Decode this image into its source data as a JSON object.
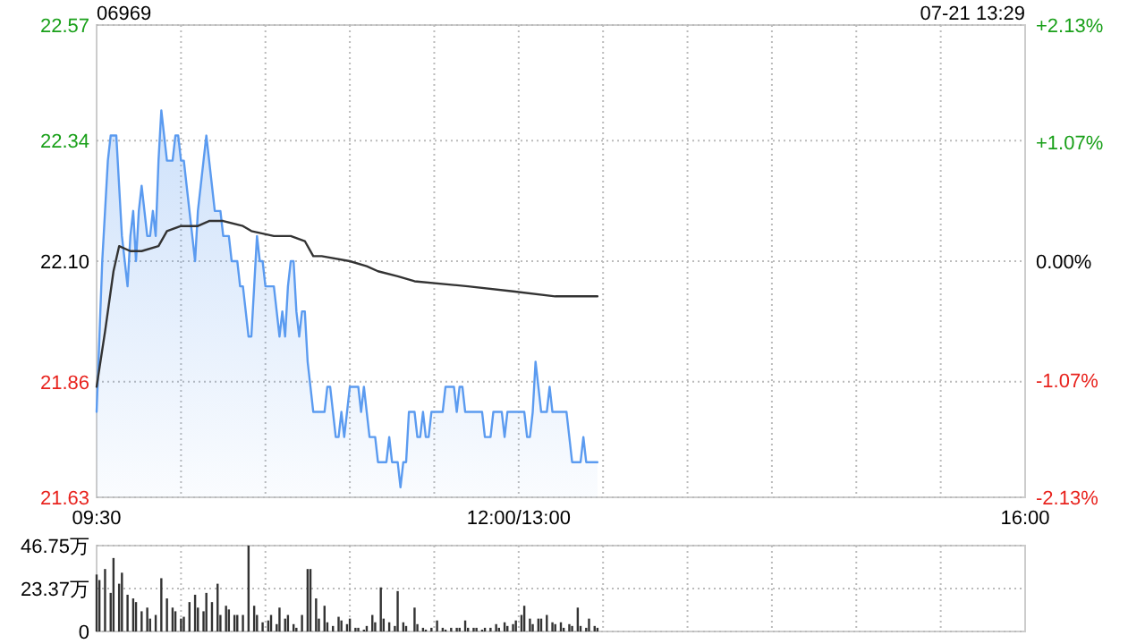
{
  "chart_data": [
    {
      "type": "line",
      "title": "06969",
      "subtitle": "07-21 13:29",
      "grid": true,
      "categories": [
        "09:30",
        null,
        null,
        null,
        null,
        null,
        null,
        null,
        null,
        null,
        null,
        null,
        null,
        null,
        null,
        null,
        null,
        null,
        null,
        null,
        null,
        null,
        null,
        null,
        null,
        null,
        null,
        null,
        null,
        null,
        null,
        null,
        null,
        null,
        null,
        null,
        null,
        null,
        null,
        null,
        null,
        null,
        null,
        null,
        null,
        null,
        null,
        null,
        null,
        null,
        null,
        null,
        null,
        null,
        null,
        null,
        null,
        null,
        null,
        null,
        null,
        null,
        null,
        null,
        null,
        null,
        null,
        null,
        null,
        null,
        null,
        null,
        null,
        null,
        null,
        null,
        null,
        null,
        null,
        null,
        null,
        null,
        null,
        null,
        null,
        null,
        null,
        null,
        null,
        null,
        null,
        null,
        null,
        null,
        null,
        null,
        null,
        null,
        null,
        null,
        null,
        null,
        null,
        null,
        null,
        null,
        null,
        null,
        null,
        null,
        null,
        null,
        null,
        null,
        null,
        null,
        null,
        null,
        null,
        null,
        null,
        null,
        null,
        null,
        null,
        null,
        null,
        null,
        null,
        null,
        null,
        null,
        null,
        null,
        null,
        null,
        null,
        null,
        null,
        null,
        null,
        null,
        null,
        null,
        null,
        null,
        null,
        null,
        null,
        null,
        "12:00/13:00",
        null,
        null,
        null,
        null,
        null,
        null,
        null,
        null,
        null,
        null,
        null,
        null,
        null,
        null,
        null,
        null,
        null,
        null,
        null,
        null,
        null,
        null,
        null,
        null,
        null,
        null,
        null,
        null,
        null,
        null,
        null,
        null,
        null,
        null,
        null,
        null,
        null,
        null,
        null,
        null,
        null,
        null,
        null,
        null,
        null,
        null,
        null,
        null,
        null,
        null,
        null,
        null,
        null,
        null,
        null,
        null,
        null,
        null,
        null,
        null,
        null,
        null,
        null,
        null,
        null,
        null,
        null,
        null,
        null,
        null,
        null,
        null,
        null,
        null,
        null,
        null,
        null,
        null,
        null,
        null,
        null,
        null,
        null,
        null,
        null,
        null,
        null,
        null,
        null,
        null,
        null,
        null,
        null,
        null,
        null,
        null,
        null,
        null,
        null,
        null,
        null,
        null,
        null,
        null,
        null,
        null,
        null,
        null,
        null,
        null,
        null,
        null,
        null,
        null,
        null,
        null,
        null,
        null,
        null,
        null,
        null,
        null,
        null,
        null,
        null,
        null,
        null,
        null,
        null,
        null,
        null,
        null,
        null,
        null,
        null,
        null,
        null,
        null,
        null,
        null,
        null,
        null,
        null,
        null,
        null,
        null,
        null,
        null,
        null,
        null,
        null,
        null,
        null,
        null,
        null,
        null,
        null,
        null,
        null,
        null,
        null,
        null,
        null,
        null,
        null,
        null,
        null,
        null,
        null,
        null,
        null,
        null,
        null,
        null,
        null,
        null,
        null,
        null,
        null,
        "16:00"
      ],
      "ylim": [
        21.63,
        22.57
      ],
      "yticks": [
        {
          "value": 21.63,
          "label": "21.63"
        },
        {
          "value": 21.86,
          "label": "21.86"
        },
        {
          "value": 22.1,
          "label": "22.10"
        },
        {
          "value": 22.34,
          "label": "22.34"
        },
        {
          "value": 22.57,
          "label": "22.57"
        }
      ],
      "y2lim": [
        -2.13,
        2.13
      ],
      "y2ticks": [
        {
          "value": -2.13,
          "label": "-2.13%"
        },
        {
          "value": -1.07,
          "label": "-1.07%"
        },
        {
          "value": 0,
          "label": "0.00%"
        },
        {
          "value": 1.07,
          "label": "+1.07%"
        },
        {
          "value": 2.13,
          "label": "+2.13%"
        }
      ],
      "series": [
        {
          "type": "area",
          "color": "#5b9bf0",
          "values": [
            21.8,
            21.95,
            22.1,
            22.2,
            22.3,
            22.35,
            22.35,
            22.35,
            22.25,
            22.15,
            22.1,
            22.05,
            22.15,
            22.2,
            22.1,
            22.2,
            22.25,
            22.2,
            22.15,
            22.15,
            22.2,
            22.15,
            22.3,
            22.4,
            22.35,
            22.3,
            22.3,
            22.3,
            22.35,
            22.35,
            22.3,
            22.3,
            22.25,
            22.2,
            22.15,
            22.1,
            22.2,
            22.25,
            22.3,
            22.35,
            22.3,
            22.25,
            22.2,
            22.2,
            22.2,
            22.15,
            22.15,
            22.15,
            22.1,
            22.1,
            22.1,
            22.05,
            22.05,
            22.0,
            21.95,
            21.95,
            22.05,
            22.15,
            22.1,
            22.1,
            22.05,
            22.05,
            22.05,
            22.05,
            22.0,
            21.95,
            22.0,
            21.95,
            22.05,
            22.1,
            22.1,
            22.0,
            21.95,
            22.0,
            22.0,
            21.9,
            21.85,
            21.8,
            21.8,
            21.8,
            21.8,
            21.8,
            21.85,
            21.85,
            21.8,
            21.75,
            21.75,
            21.8,
            21.75,
            21.8,
            21.85,
            21.85,
            21.85,
            21.85,
            21.8,
            21.85,
            21.8,
            21.75,
            21.75,
            21.75,
            21.7,
            21.7,
            21.7,
            21.7,
            21.75,
            21.7,
            21.7,
            21.7,
            21.65,
            21.7,
            21.7,
            21.8,
            21.8,
            21.8,
            21.75,
            21.75,
            21.8,
            21.75,
            21.75,
            21.8,
            21.8,
            21.8,
            21.8,
            21.8,
            21.85,
            21.85,
            21.85,
            21.85,
            21.8,
            21.85,
            21.85,
            21.8,
            21.8,
            21.8,
            21.8,
            21.8,
            21.8,
            21.8,
            21.75,
            21.75,
            21.75,
            21.8,
            21.8,
            21.8,
            21.8,
            21.75,
            21.8,
            21.8,
            21.8,
            21.8,
            21.8,
            21.8,
            21.8,
            21.75,
            21.75,
            21.8,
            21.9,
            21.85,
            21.8,
            21.8,
            21.8,
            21.85,
            21.8,
            21.8,
            21.8,
            21.8,
            21.8,
            21.8,
            21.75,
            21.7,
            21.7,
            21.7,
            21.7,
            21.75,
            21.7,
            21.7,
            21.7,
            21.7,
            21.7,
            null,
            null,
            null,
            null,
            null,
            null,
            null,
            null,
            null,
            null,
            null,
            null,
            null,
            null,
            null,
            null,
            null,
            null,
            null,
            null,
            null,
            null,
            null,
            null,
            null,
            null,
            null,
            null,
            null,
            null,
            null,
            null,
            null,
            null,
            null,
            null,
            null,
            null,
            null,
            null,
            null,
            null,
            null,
            null,
            null,
            null,
            null,
            null,
            null,
            null,
            null,
            null,
            null,
            null,
            null,
            null,
            null,
            null,
            null,
            null,
            null,
            null,
            null,
            null,
            null,
            null,
            null,
            null,
            null,
            null,
            null,
            null,
            null,
            null,
            null,
            null,
            null,
            null,
            null,
            null,
            null,
            null,
            null,
            null,
            null,
            null,
            null,
            null,
            null,
            null,
            null,
            null,
            null,
            null,
            null,
            null,
            null,
            null,
            null,
            null,
            null,
            null,
            null,
            null,
            null,
            null,
            null,
            null,
            null,
            null,
            null,
            null,
            null,
            null,
            null,
            null,
            null,
            null,
            null,
            null,
            null,
            null,
            null,
            null,
            null,
            null,
            null,
            null,
            null,
            null,
            null,
            null,
            null,
            null,
            null,
            null,
            null,
            null,
            null,
            null,
            null,
            null,
            null,
            null,
            null,
            null,
            null,
            null,
            null,
            null,
            null,
            null
          ]
        },
        {
          "color": "#333333",
          "values": [
            21.85,
            null,
            null,
            21.96,
            null,
            null,
            22.08,
            null,
            22.13,
            null,
            null,
            null,
            22.12,
            null,
            null,
            null,
            22.12,
            null,
            null,
            null,
            null,
            null,
            22.13,
            null,
            null,
            22.16,
            null,
            null,
            null,
            null,
            22.17,
            null,
            null,
            null,
            null,
            null,
            22.17,
            null,
            null,
            null,
            22.18,
            null,
            null,
            null,
            null,
            22.18,
            null,
            null,
            null,
            null,
            null,
            null,
            22.17,
            null,
            null,
            22.16,
            null,
            null,
            null,
            null,
            null,
            null,
            null,
            22.15,
            null,
            null,
            null,
            null,
            null,
            22.15,
            null,
            null,
            null,
            null,
            22.14,
            null,
            null,
            22.11,
            null,
            null,
            22.11,
            null,
            null,
            null,
            null,
            null,
            null,
            null,
            null,
            null,
            22.1,
            null,
            null,
            null,
            null,
            null,
            22.09,
            null,
            null,
            null,
            22.08,
            null,
            null,
            null,
            null,
            null,
            null,
            22.07,
            null,
            null,
            null,
            null,
            null,
            22.06,
            null,
            null,
            null,
            null,
            null,
            null,
            null,
            null,
            null,
            null,
            null,
            null,
            null,
            null,
            null,
            null,
            null,
            null,
            22.05,
            null,
            null,
            null,
            null,
            null,
            null,
            null,
            null,
            null,
            null,
            null,
            null,
            null,
            null,
            null,
            22.04,
            null,
            null,
            null,
            null,
            null,
            null,
            null,
            null,
            null,
            null,
            null,
            null,
            null,
            null,
            22.03,
            null,
            null,
            null,
            null,
            null,
            null,
            null,
            null,
            null,
            null,
            null,
            null,
            null,
            null,
            22.03,
            null,
            null,
            null,
            null,
            null,
            null,
            null,
            null,
            null,
            null,
            null,
            null,
            null,
            null,
            null,
            null,
            null,
            null,
            null,
            null,
            null,
            null,
            null,
            null,
            null,
            null,
            null,
            null,
            null,
            null,
            null,
            null,
            null,
            null,
            null,
            null,
            null,
            null,
            null,
            null,
            null,
            null,
            null,
            null,
            null,
            null,
            null,
            null,
            null,
            null,
            null,
            null,
            null,
            null,
            null,
            null,
            null,
            null,
            null,
            null,
            null,
            null,
            null,
            null,
            null,
            null,
            null,
            null,
            null,
            null,
            null,
            null,
            null,
            null,
            null,
            null,
            null,
            null,
            null,
            null,
            null,
            null,
            null,
            null,
            null,
            null,
            null,
            null,
            null,
            null,
            null,
            null,
            null,
            null,
            null,
            null,
            null,
            null,
            null,
            null,
            null,
            null,
            null,
            null,
            null,
            null,
            null,
            null,
            null,
            null,
            null,
            null,
            null,
            null,
            null,
            null,
            null,
            null,
            null,
            null,
            null,
            null,
            null,
            null,
            null,
            null,
            null,
            null,
            null,
            null,
            null,
            null,
            null,
            null,
            null,
            null,
            null,
            null,
            null,
            null,
            null,
            null,
            null,
            null,
            null,
            null,
            null,
            null,
            null,
            null,
            null,
            null
          ]
        }
      ]
    },
    {
      "type": "bar",
      "grid": true,
      "tick_labels": "y",
      "categories": [
        null,
        null,
        null,
        null,
        null,
        null,
        null,
        null,
        null,
        null,
        null,
        null,
        null,
        null,
        null,
        null,
        null,
        null,
        null,
        null,
        null,
        null,
        null,
        null,
        null,
        null,
        null,
        null,
        null,
        null,
        null,
        null,
        null,
        null,
        null,
        null,
        null,
        null,
        null,
        null,
        null,
        null,
        null,
        null,
        null,
        null,
        null,
        null,
        null,
        null,
        null,
        null,
        null,
        null,
        null,
        null,
        null,
        null,
        null,
        null,
        null,
        null,
        null,
        null,
        null,
        null,
        null,
        null,
        null,
        null,
        null,
        null,
        null,
        null,
        null,
        null,
        null,
        null,
        null,
        null,
        null,
        null,
        null,
        null,
        null,
        null,
        null,
        null,
        null,
        null,
        null,
        null,
        null,
        null,
        null,
        null,
        null,
        null,
        null,
        null,
        null,
        null,
        null,
        null,
        null,
        null,
        null,
        null,
        null,
        null,
        null,
        null,
        null,
        null,
        null,
        null,
        null,
        null,
        null,
        null,
        null,
        null,
        null,
        null,
        null,
        null,
        null,
        null,
        null,
        null,
        null,
        null,
        null,
        null,
        null,
        null,
        null,
        null,
        null,
        null,
        null,
        null,
        null,
        null,
        null,
        null,
        null,
        null,
        null,
        null,
        null,
        null,
        null,
        null,
        null,
        null,
        null,
        null,
        null,
        null,
        null,
        null,
        null,
        null,
        null,
        null,
        null,
        null,
        null,
        null,
        null,
        null,
        null,
        null,
        null,
        null,
        null,
        null,
        null,
        null,
        null,
        null,
        null,
        null,
        null,
        null,
        null,
        null,
        null,
        null,
        null,
        null,
        null,
        null,
        null,
        null,
        null,
        null,
        null,
        null,
        null,
        null,
        null,
        null,
        null,
        null,
        null,
        null,
        null,
        null,
        null,
        null,
        null,
        null,
        null,
        null,
        null,
        null,
        null,
        null,
        null,
        null,
        null,
        null,
        null,
        null,
        null,
        null,
        null,
        null,
        null,
        null,
        null,
        null,
        null,
        null,
        null,
        null,
        null,
        null,
        null,
        null,
        null,
        null,
        null,
        null,
        null,
        null,
        null,
        null,
        null,
        null,
        null,
        null,
        null,
        null,
        null,
        null,
        null,
        null,
        null,
        null,
        null,
        null,
        null,
        null,
        null,
        null,
        null,
        null,
        null,
        null,
        null,
        null,
        null,
        null,
        null,
        null,
        null,
        null,
        null,
        null,
        null,
        null,
        null,
        null,
        null,
        null,
        null,
        null,
        null,
        null,
        null,
        null,
        null,
        null,
        null,
        null,
        null,
        null,
        null,
        null,
        null,
        null,
        null,
        null,
        null,
        null,
        null,
        null,
        null,
        null,
        null,
        null,
        null,
        null,
        null,
        null,
        null,
        null,
        null,
        null,
        null,
        null,
        null,
        null,
        null,
        null,
        null,
        null,
        null
      ],
      "ylim": [
        0,
        46.75
      ],
      "yticks": [
        0,
        {
          "value": 23.37,
          "label": "23.37万"
        },
        {
          "value": 46.75,
          "label": "46.75万"
        }
      ],
      "series": [
        {
          "color": "#333333",
          "values": [
            31,
            28,
            null,
            34,
            null,
            21,
            40,
            null,
            26,
            32,
            null,
            20,
            null,
            18,
            16,
            null,
            11,
            null,
            13,
            7,
            null,
            9,
            null,
            29,
            null,
            18,
            null,
            13,
            11,
            null,
            7,
            8,
            null,
            16,
            null,
            20,
            13,
            null,
            11,
            21,
            null,
            16,
            null,
            26,
            9,
            null,
            14,
            12,
            null,
            9,
            9,
            null,
            9,
            null,
            46.75,
            null,
            14,
            9,
            null,
            5,
            null,
            6,
            9,
            null,
            4,
            13,
            null,
            7,
            9,
            null,
            4,
            2,
            null,
            9,
            null,
            34,
            34,
            null,
            18,
            7,
            null,
            14,
            5,
            null,
            3,
            null,
            8,
            6,
            null,
            4,
            7,
            null,
            2,
            2,
            null,
            1,
            3,
            null,
            9,
            5,
            null,
            24,
            7,
            null,
            5,
            null,
            3,
            22,
            null,
            5,
            3,
            null,
            null,
            13,
            4,
            null,
            2,
            1,
            null,
            2,
            null,
            6,
            null,
            2,
            1,
            null,
            2,
            null,
            2,
            2,
            null,
            6,
            2,
            null,
            2,
            2,
            null,
            1,
            2,
            null,
            2,
            null,
            4,
            2,
            null,
            5,
            3,
            null,
            4,
            6,
            null,
            9,
            14,
            null,
            7,
            4,
            null,
            7,
            7,
            null,
            9,
            null,
            5,
            4,
            null,
            5,
            2,
            null,
            4,
            3,
            null,
            13,
            3,
            null,
            2,
            7,
            null,
            3,
            2,
            null,
            null,
            null,
            null,
            null,
            null,
            null,
            null,
            null,
            null,
            null,
            null,
            null,
            null,
            null,
            null,
            null,
            null,
            null,
            null,
            null,
            null,
            null,
            null,
            null,
            null,
            null,
            null,
            null,
            null,
            null,
            null,
            null,
            null,
            null,
            null,
            null,
            null,
            null,
            null,
            null,
            null,
            null,
            null,
            null,
            null,
            null,
            null,
            null,
            null,
            null,
            null,
            null,
            null,
            null,
            null,
            null,
            null,
            null,
            null,
            null,
            null,
            null,
            null,
            null,
            null,
            null,
            null,
            null,
            null,
            null,
            null,
            null,
            null,
            null,
            null,
            null,
            null,
            null,
            null,
            null,
            null,
            null,
            null,
            null,
            null,
            null,
            null,
            null,
            null,
            null,
            null,
            null,
            null,
            null,
            null,
            null,
            null,
            null,
            null,
            null,
            null,
            null,
            null,
            null,
            null,
            null,
            null,
            null,
            null,
            null,
            null,
            null,
            null,
            null,
            null,
            null,
            null,
            null,
            null,
            null,
            null,
            null,
            null,
            null,
            null,
            null,
            null,
            null,
            null,
            null,
            null,
            null,
            null,
            null,
            null,
            null,
            null,
            null,
            null,
            null,
            null,
            null,
            null,
            null,
            null,
            null,
            null,
            null,
            null,
            null,
            null
          ]
        }
      ]
    }
  ]
}
